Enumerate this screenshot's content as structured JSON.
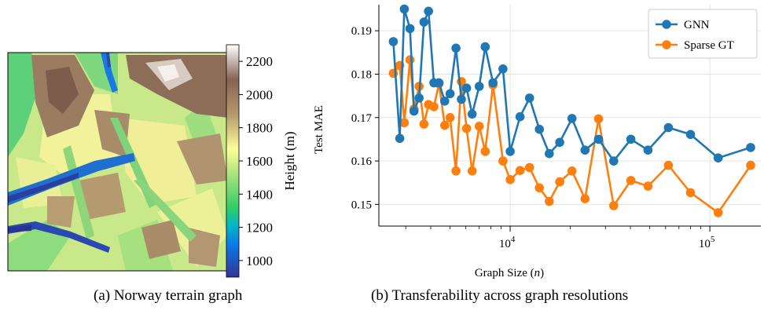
{
  "panel_a": {
    "caption": "(a) Norway terrain graph",
    "colorbar": {
      "label": "Height (m)",
      "range": [
        900,
        2300
      ],
      "ticks": [
        1000,
        1200,
        1400,
        1600,
        1800,
        2000,
        2200
      ],
      "colormap": "terrain"
    }
  },
  "panel_b": {
    "caption": "(b) Transferability across graph resolutions"
  },
  "chart_data": {
    "type": "line",
    "xlabel": "Graph Size (n)",
    "ylabel": "Test MAE",
    "xscale": "log",
    "xlim": [
      2200,
      180000
    ],
    "ylim": [
      0.145,
      0.196
    ],
    "xticks_major": [
      {
        "value": 10000,
        "label": "10^4"
      },
      {
        "value": 100000,
        "label": "10^5"
      }
    ],
    "yticks": [
      0.15,
      0.16,
      0.17,
      0.18,
      0.19
    ],
    "grid": true,
    "legend": "top-right",
    "series": [
      {
        "name": "GNN",
        "color": "#1f77b4",
        "points": [
          [
            2600,
            0.1875
          ],
          [
            2800,
            0.1652
          ],
          [
            2950,
            0.195
          ],
          [
            3150,
            0.1905
          ],
          [
            3300,
            0.1715
          ],
          [
            3500,
            0.1745
          ],
          [
            3700,
            0.192
          ],
          [
            3900,
            0.1945
          ],
          [
            4150,
            0.178
          ],
          [
            4400,
            0.178
          ],
          [
            4700,
            0.1738
          ],
          [
            5000,
            0.1755
          ],
          [
            5350,
            0.186
          ],
          [
            5700,
            0.1742
          ],
          [
            6050,
            0.1768
          ],
          [
            6450,
            0.1708
          ],
          [
            7000,
            0.1772
          ],
          [
            7500,
            0.1863
          ],
          [
            8200,
            0.178
          ],
          [
            9200,
            0.1812
          ],
          [
            10000,
            0.1622
          ],
          [
            11200,
            0.1702
          ],
          [
            12500,
            0.1745
          ],
          [
            14000,
            0.1673
          ],
          [
            15700,
            0.1617
          ],
          [
            17700,
            0.1643
          ],
          [
            20400,
            0.1698
          ],
          [
            23700,
            0.1625
          ],
          [
            27700,
            0.165
          ],
          [
            33000,
            0.16
          ],
          [
            40200,
            0.165
          ],
          [
            49000,
            0.1625
          ],
          [
            62000,
            0.1677
          ],
          [
            80000,
            0.1661
          ],
          [
            110000,
            0.1607
          ],
          [
            160000,
            0.1631
          ]
        ]
      },
      {
        "name": "Sparse GT",
        "color": "#ff7f0e",
        "points": [
          [
            2600,
            0.1802
          ],
          [
            2800,
            0.182
          ],
          [
            2950,
            0.1688
          ],
          [
            3150,
            0.1833
          ],
          [
            3300,
            0.172
          ],
          [
            3500,
            0.1772
          ],
          [
            3700,
            0.1685
          ],
          [
            3900,
            0.173
          ],
          [
            4150,
            0.1725
          ],
          [
            4400,
            0.1778
          ],
          [
            4700,
            0.1682
          ],
          [
            5000,
            0.17
          ],
          [
            5350,
            0.1577
          ],
          [
            5700,
            0.1783
          ],
          [
            6050,
            0.1675
          ],
          [
            6450,
            0.1577
          ],
          [
            7000,
            0.168
          ],
          [
            7500,
            0.1622
          ],
          [
            8200,
            0.1775
          ],
          [
            9200,
            0.16
          ],
          [
            10000,
            0.1557
          ],
          [
            11200,
            0.1578
          ],
          [
            12500,
            0.1585
          ],
          [
            14000,
            0.1538
          ],
          [
            15700,
            0.1507
          ],
          [
            17700,
            0.1552
          ],
          [
            20400,
            0.1577
          ],
          [
            23700,
            0.1513
          ],
          [
            27700,
            0.1697
          ],
          [
            33000,
            0.1497
          ],
          [
            40200,
            0.1555
          ],
          [
            49000,
            0.1542
          ],
          [
            62000,
            0.159
          ],
          [
            80000,
            0.1527
          ],
          [
            110000,
            0.1481
          ],
          [
            160000,
            0.159
          ]
        ]
      }
    ]
  }
}
